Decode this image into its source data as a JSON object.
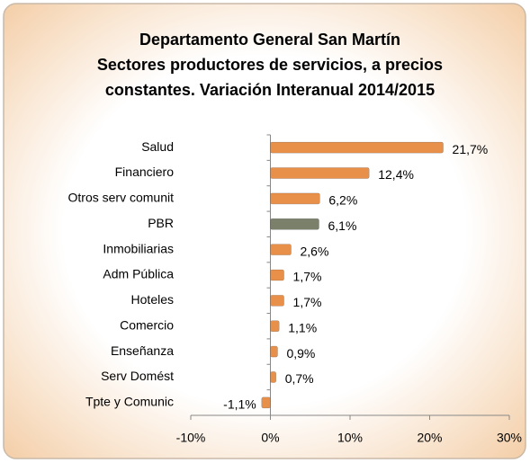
{
  "chart_data": {
    "type": "hbar",
    "title": [
      "Departamento General San Martín",
      "Sectores productores de servicios, a precios",
      "constantes. Variación Interanual 2014/2015"
    ],
    "categories": [
      "Salud",
      "Financiero",
      "Otros serv comunit",
      "PBR",
      "Inmobiliarias",
      "Adm Pública",
      "Hoteles",
      "Comercio",
      "Enseñanza",
      "Serv Domést",
      "Tpte y Comunic"
    ],
    "values": [
      21.7,
      12.4,
      6.2,
      6.1,
      2.6,
      1.7,
      1.7,
      1.1,
      0.9,
      0.7,
      -1.1
    ],
    "value_labels": [
      "21,7%",
      "12,4%",
      "6,2%",
      "6,1%",
      "2,6%",
      "1,7%",
      "1,7%",
      "1,1%",
      "0,9%",
      "0,7%",
      "-1,1%"
    ],
    "colors": [
      "#e8904a",
      "#e8904a",
      "#e8904a",
      "#7b806b",
      "#e8904a",
      "#e8904a",
      "#e8904a",
      "#e8904a",
      "#e8904a",
      "#e8904a",
      "#e8904a"
    ],
    "xlim": [
      -10,
      30
    ],
    "xticks": [
      {
        "value": -10,
        "label": "-10%"
      },
      {
        "value": 0,
        "label": "0%"
      },
      {
        "value": 10,
        "label": "10%"
      },
      {
        "value": 20,
        "label": "20%"
      },
      {
        "value": 30,
        "label": "30%"
      }
    ]
  }
}
